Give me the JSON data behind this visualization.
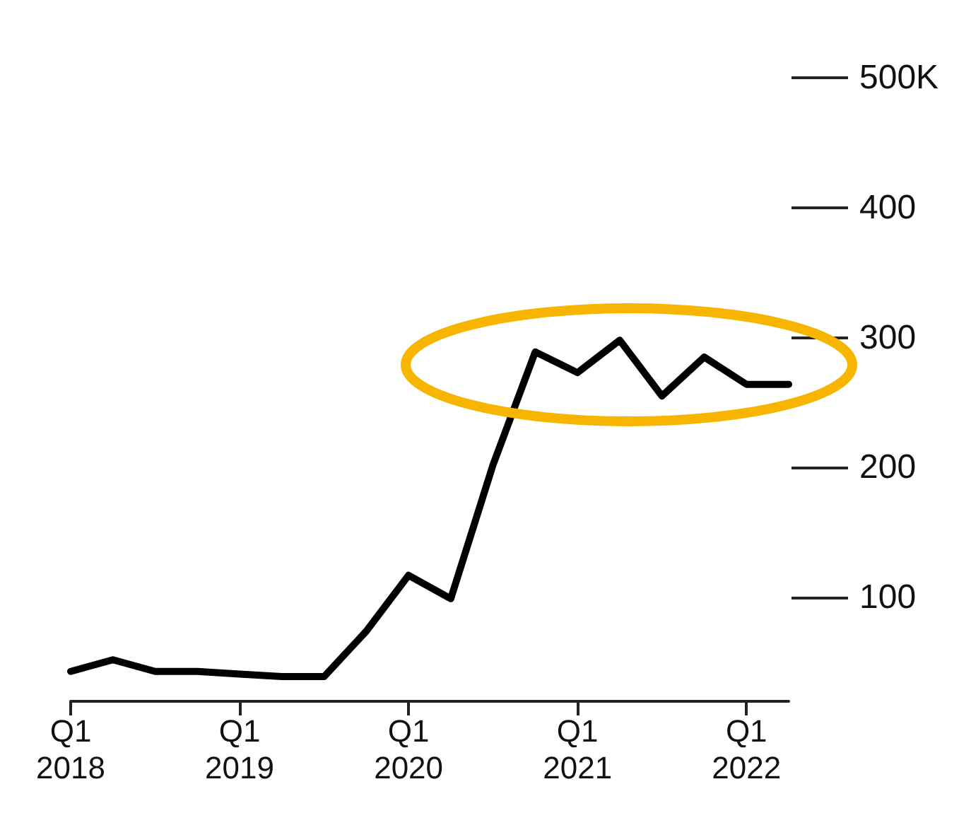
{
  "chart_data": {
    "type": "line",
    "categories": [
      "Q1 2018",
      null,
      null,
      null,
      "Q1 2019",
      null,
      null,
      null,
      "Q1 2020",
      null,
      null,
      null,
      "Q1 2021",
      null,
      null,
      null,
      "Q1 2022",
      null
    ],
    "series": [
      {
        "color": "#000000",
        "values": [
          43,
          52,
          43,
          43,
          41,
          39,
          39,
          74,
          117,
          99,
          202,
          289,
          273,
          298,
          255,
          285,
          264,
          264
        ]
      }
    ],
    "ylim": [
      20,
      500
    ],
    "yticks": [
      100,
      200,
      300,
      400,
      {
        "value": 500,
        "label": "500K"
      }
    ],
    "grid": false,
    "marker": "none",
    "line_style": "solid"
  }
}
